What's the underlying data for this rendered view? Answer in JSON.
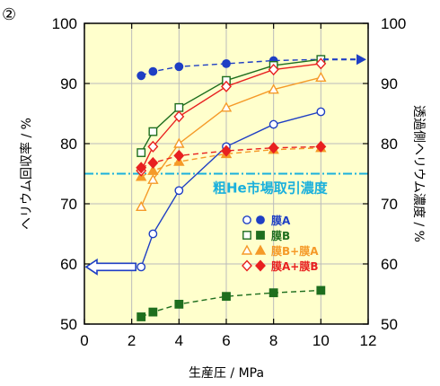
{
  "figure_label": "②",
  "chart_data": {
    "type": "line",
    "xlabel": "生産圧 / MPa",
    "ylabel_left": "ヘリウム回収率 / %",
    "ylabel_right": "透過側ヘリウム濃度 / %",
    "xlim": [
      0,
      12
    ],
    "ylim": [
      50,
      100
    ],
    "xticks": [
      "0",
      "2",
      "4",
      "6",
      "8",
      "10",
      "12"
    ],
    "yticks_left": [
      "50",
      "60",
      "70",
      "80",
      "90",
      "100"
    ],
    "yticks_right": [
      "50",
      "60",
      "70",
      "80",
      "90",
      "100"
    ],
    "grid": true,
    "background": "#ffffcc",
    "threshold": {
      "label": "粗He市場取引濃度",
      "y": 75,
      "color": "#1ab0dc"
    },
    "series": [
      {
        "name": "膜A",
        "color": "#1f3fc4",
        "marker": "circle",
        "x": [
          2.4,
          2.9,
          4,
          6,
          8,
          10
        ],
        "recovery": [
          59.5,
          65,
          72.2,
          79.5,
          83.2,
          85.3
        ],
        "concentration": [
          91.3,
          92,
          92.8,
          93.3,
          93.8,
          94
        ]
      },
      {
        "name": "膜B",
        "color": "#1e6e1e",
        "marker": "square",
        "x": [
          2.4,
          2.9,
          4,
          6,
          8,
          10
        ],
        "recovery": [
          78.5,
          82,
          86,
          90.5,
          93,
          94
        ],
        "concentration": [
          51.2,
          52,
          53.3,
          54.6,
          55.2,
          55.6
        ]
      },
      {
        "name": "膜B+膜A",
        "color": "#f59a28",
        "marker": "triangle",
        "x": [
          2.4,
          2.9,
          4,
          6,
          8,
          10
        ],
        "recovery": [
          69.5,
          74,
          80,
          86,
          89,
          91
        ],
        "concentration": [
          74.5,
          75.5,
          77,
          78.3,
          79,
          79.3
        ]
      },
      {
        "name": "膜A+膜B",
        "color": "#e82020",
        "marker": "diamond",
        "x": [
          2.4,
          2.9,
          4,
          6,
          8,
          10
        ],
        "recovery": [
          75.5,
          79.5,
          84.5,
          89.5,
          92.3,
          93.3
        ],
        "concentration": [
          76,
          76.8,
          78,
          78.8,
          79.3,
          79.5
        ]
      }
    ],
    "arrows": [
      {
        "direction": "left",
        "color": "#1f3fc4",
        "y": 59.5
      },
      {
        "direction": "right",
        "color": "#1f3fc4",
        "y": 94
      }
    ]
  }
}
